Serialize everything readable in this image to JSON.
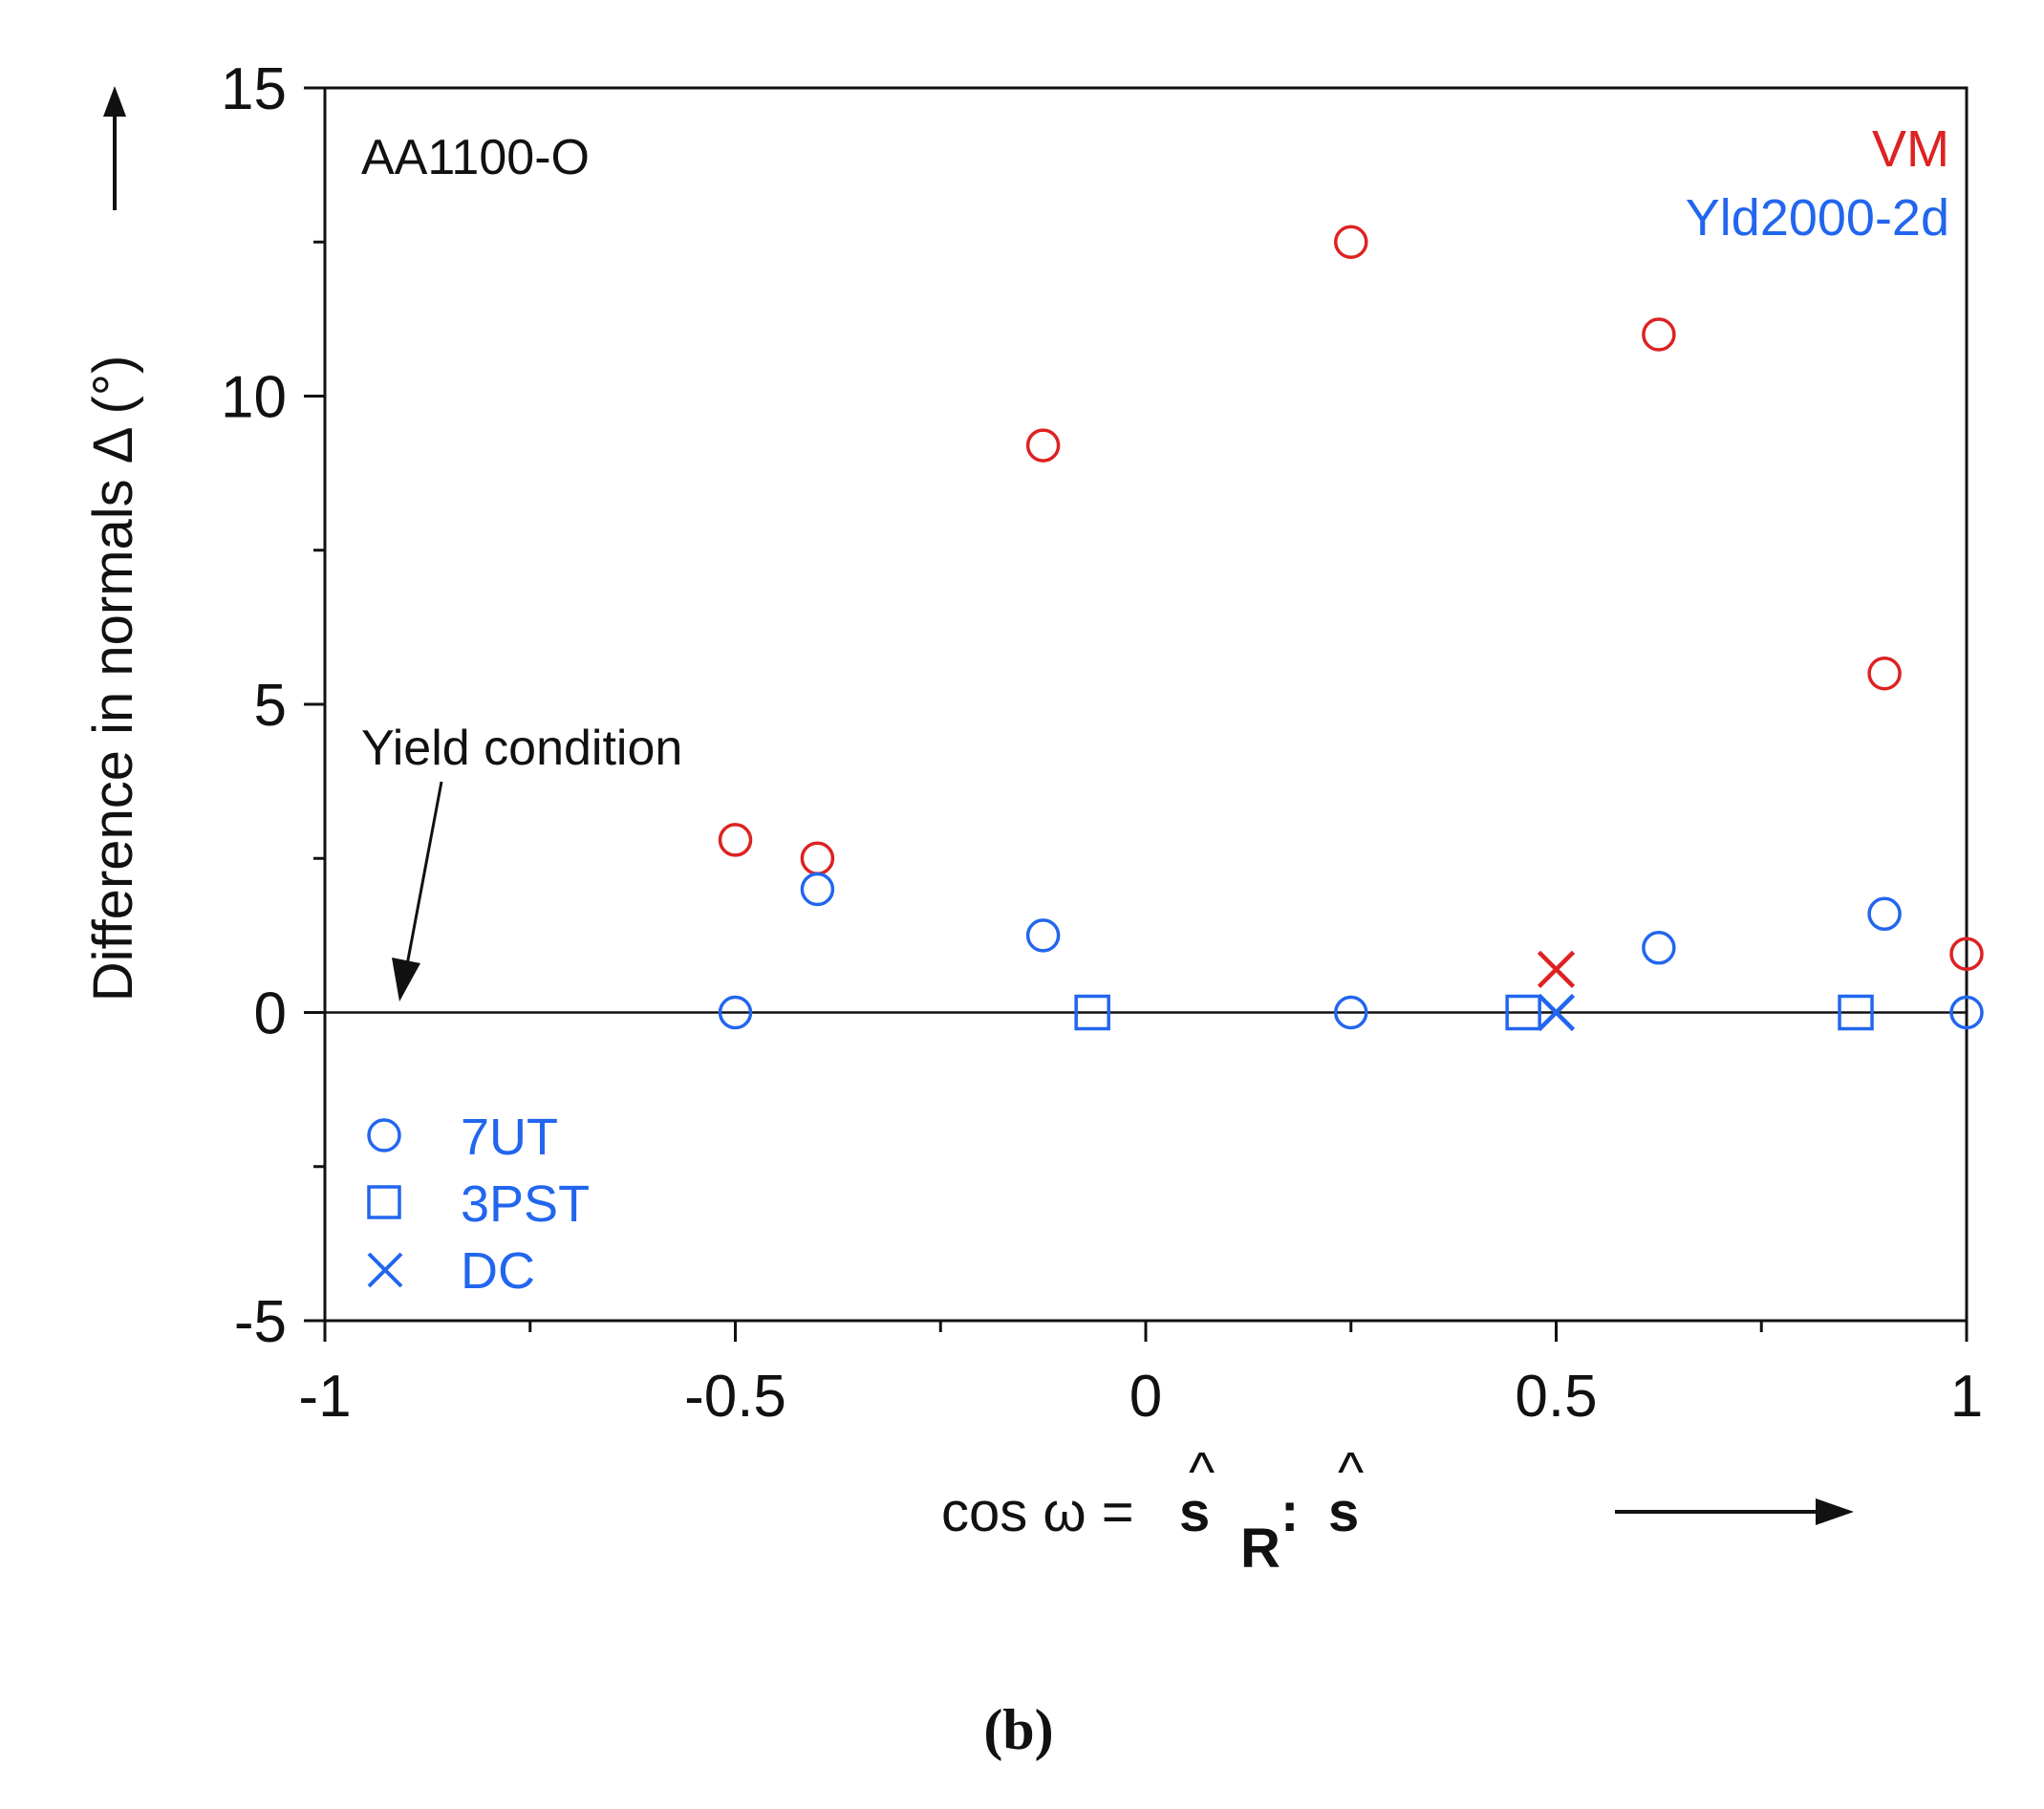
{
  "chart_data": {
    "type": "scatter",
    "xlim": [
      -1,
      1
    ],
    "ylim": [
      -5,
      15
    ],
    "x_ticks": [
      "-1",
      "-0.5",
      "0",
      "0.5",
      "1"
    ],
    "y_ticks": [
      "15",
      "10",
      "5",
      "0",
      "-5"
    ],
    "ylabel": "Difference in normals Δ (°)",
    "xlabel": {
      "prefix": "cos ω = ",
      "s1": "s",
      "sub": "R",
      "colon": ": ",
      "s2": "s",
      "hat": "^"
    },
    "material": "AA1100-O",
    "models": [
      {
        "name": "VM",
        "color": "#dd2222"
      },
      {
        "name": "Yld2000-2d",
        "color": "#2266ee"
      }
    ],
    "legend": [
      {
        "label": "7UT",
        "marker": "circle"
      },
      {
        "label": "3PST",
        "marker": "square"
      },
      {
        "label": "DC",
        "marker": "cross"
      }
    ],
    "annotation": "Yield condition",
    "panel_label": "(b)",
    "series": [
      {
        "model": "VM",
        "test": "7UT",
        "marker": "circle",
        "color": "#dd2222",
        "points": [
          [
            -0.5,
            2.8
          ],
          [
            -0.4,
            2.5
          ],
          [
            -0.125,
            9.2
          ],
          [
            0.25,
            12.5
          ],
          [
            0.625,
            11.0
          ],
          [
            0.9,
            5.5
          ],
          [
            1.0,
            0.95
          ]
        ]
      },
      {
        "model": "VM",
        "test": "DC",
        "marker": "cross",
        "color": "#dd2222",
        "points": [
          [
            0.5,
            0.7
          ]
        ]
      },
      {
        "model": "Yld2000-2d",
        "test": "7UT",
        "marker": "circle",
        "color": "#2266ee",
        "points": [
          [
            -0.5,
            0.0
          ],
          [
            -0.4,
            2.0
          ],
          [
            -0.125,
            1.25
          ],
          [
            0.25,
            0.0
          ],
          [
            0.625,
            1.05
          ],
          [
            0.9,
            1.6
          ],
          [
            1.0,
            0.0
          ]
        ]
      },
      {
        "model": "Yld2000-2d",
        "test": "3PST",
        "marker": "square",
        "color": "#2266ee",
        "points": [
          [
            -0.065,
            0.0
          ],
          [
            0.46,
            0.0
          ],
          [
            0.865,
            0.0
          ]
        ]
      },
      {
        "model": "Yld2000-2d",
        "test": "DC",
        "marker": "cross",
        "color": "#2266ee",
        "points": [
          [
            0.5,
            0.0
          ]
        ]
      }
    ]
  }
}
